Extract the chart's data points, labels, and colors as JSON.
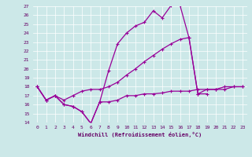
{
  "xlabel": "Windchill (Refroidissement éolien,°C)",
  "background_color": "#cce8e8",
  "grid_color": "#bbdddd",
  "line_color": "#990099",
  "xlim": [
    -0.5,
    23.5
  ],
  "ylim": [
    14,
    27
  ],
  "yticks": [
    14,
    15,
    16,
    17,
    18,
    19,
    20,
    21,
    22,
    23,
    24,
    25,
    26,
    27
  ],
  "xticks": [
    0,
    1,
    2,
    3,
    4,
    5,
    6,
    7,
    8,
    9,
    10,
    11,
    12,
    13,
    14,
    15,
    16,
    17,
    18,
    19,
    20,
    21,
    22,
    23
  ],
  "line1_x": [
    0,
    1,
    2,
    3,
    4,
    5,
    6,
    7,
    8,
    9,
    10,
    11,
    12,
    13,
    14,
    15,
    16,
    17,
    18,
    19,
    20,
    21,
    22,
    23
  ],
  "line1_y": [
    18.0,
    16.5,
    17.0,
    16.0,
    15.8,
    15.2,
    13.9,
    16.3,
    16.3,
    16.5,
    17.0,
    17.0,
    17.2,
    17.2,
    17.3,
    17.5,
    17.5,
    17.5,
    17.7,
    17.7,
    17.7,
    17.7,
    18.0,
    18.0
  ],
  "line2_x": [
    0,
    1,
    2,
    3,
    4,
    5,
    6,
    7,
    8,
    9,
    10,
    11,
    12,
    13,
    14,
    15,
    16,
    17,
    18,
    19
  ],
  "line2_y": [
    18.0,
    16.5,
    17.0,
    16.0,
    15.8,
    15.2,
    13.9,
    16.3,
    19.8,
    22.8,
    24.0,
    24.8,
    25.2,
    26.5,
    25.7,
    27.1,
    27.1,
    23.5,
    17.2,
    17.2
  ],
  "line3_x": [
    0,
    1,
    2,
    3,
    4,
    5,
    6,
    7,
    8,
    9,
    10,
    11,
    12,
    13,
    14,
    15,
    16,
    17,
    18,
    19,
    20,
    21,
    22,
    23
  ],
  "line3_y": [
    18.0,
    16.5,
    17.0,
    16.5,
    17.0,
    17.5,
    17.7,
    17.7,
    18.0,
    18.5,
    19.3,
    20.0,
    20.8,
    21.5,
    22.2,
    22.8,
    23.3,
    23.5,
    17.2,
    17.7,
    17.7,
    18.0,
    18.0,
    18.0
  ]
}
